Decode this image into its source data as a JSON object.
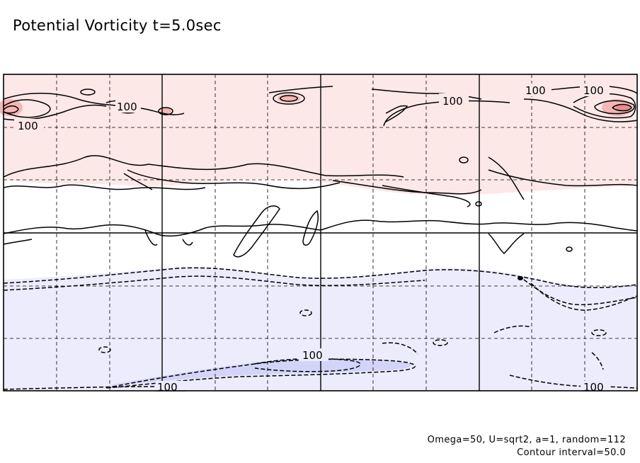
{
  "chart_data": {
    "type": "contour",
    "title": "Potential Vorticity t=5.0sec",
    "annotations": [
      "Omega=50, U=sqrt2, a=1, random=112",
      "Contour interval=50.0"
    ],
    "contour_interval": 50.0,
    "grid": true,
    "contour_labels": [
      "100",
      "100",
      "100",
      "100",
      "100",
      "100",
      "100",
      "100"
    ],
    "colors": {
      "positive_fill": "#fde8e8",
      "positive_fill_strong": "#f4b6b6",
      "negative_fill": "#ececfc",
      "negative_fill_strong": "#b8b8f4",
      "contour": "#000000"
    }
  }
}
